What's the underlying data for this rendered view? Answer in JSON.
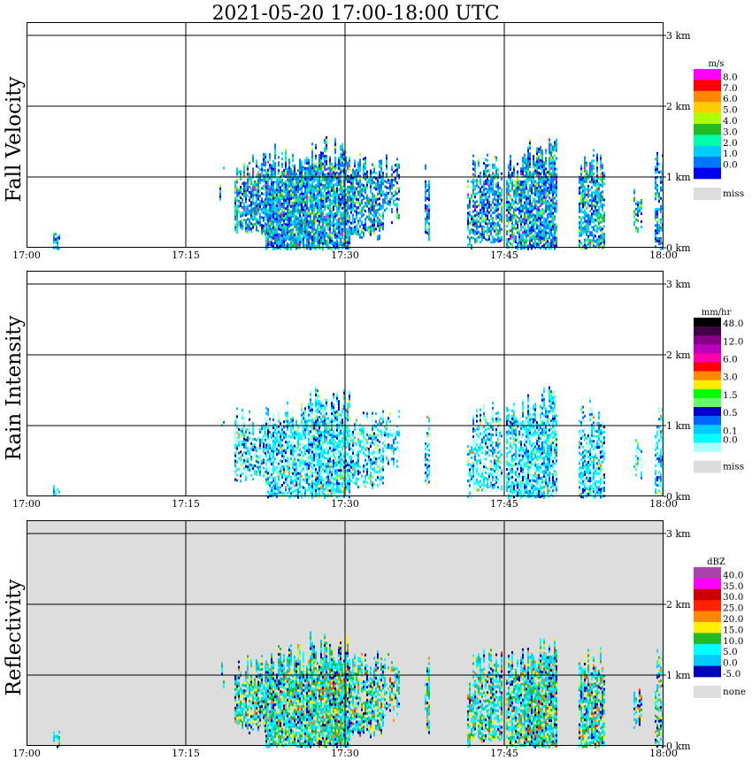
{
  "chart_data": [
    {
      "type": "heatmap",
      "title": "2021-05-20   17:00-18:00 UTC",
      "ylabel": "Fall Velocity",
      "x_ticks": [
        "17:00",
        "17:15",
        "17:30",
        "17:45",
        "18:00"
      ],
      "y_ticks": [
        "0 km",
        "1 km",
        "2 km",
        "3 km"
      ],
      "ylim_km": [
        0,
        3.2
      ],
      "xlim_minutes": [
        0,
        60
      ],
      "background": "#ffffff",
      "colorbar": {
        "unit": "m/s",
        "labels": [
          "8.0",
          "7.0",
          "6.0",
          "5.0",
          "4.0",
          "3.0",
          "2.0",
          "1.0",
          "0.0"
        ],
        "colors": [
          "#ff00ff",
          "#ff0000",
          "#ff8800",
          "#ffcc00",
          "#aaff00",
          "#22bb22",
          "#00ffaa",
          "#00ccff",
          "#0077ff",
          "#0000ee"
        ],
        "miss_label": "miss",
        "miss_color": "#dddddd"
      },
      "cells": [
        {
          "start": 2.5,
          "end": 3.2,
          "top": 0.25,
          "dens": 0.7
        },
        {
          "start": 18.2,
          "end": 18.6,
          "top": 1.18,
          "bot": 1.0,
          "dens": 0.9
        },
        {
          "start": 19.6,
          "end": 22.5,
          "top": 1.25,
          "bot": 0.3,
          "dens": 0.75
        },
        {
          "start": 22.5,
          "end": 26.5,
          "top": 1.4,
          "bot": 0.0,
          "dens": 0.88
        },
        {
          "start": 26.5,
          "end": 30.5,
          "top": 1.5,
          "bot": 0.0,
          "dens": 0.85
        },
        {
          "start": 30.5,
          "end": 33.7,
          "top": 1.25,
          "bot": 0.2,
          "dens": 0.72
        },
        {
          "start": 33.7,
          "end": 35.2,
          "top": 1.25,
          "bot": 0.6,
          "dens": 0.55
        },
        {
          "start": 37.5,
          "end": 37.9,
          "top": 1.18,
          "bot": 0.2,
          "dens": 0.6
        },
        {
          "start": 41.5,
          "end": 42.0,
          "top": 0.95,
          "bot": 0.0,
          "dens": 0.6
        },
        {
          "start": 42.0,
          "end": 44.8,
          "top": 1.3,
          "bot": 0.1,
          "dens": 0.7
        },
        {
          "start": 45.2,
          "end": 46.8,
          "top": 1.3,
          "bot": 0.0,
          "dens": 0.75
        },
        {
          "start": 46.8,
          "end": 50.0,
          "top": 1.45,
          "bot": 0.0,
          "dens": 0.85
        },
        {
          "start": 52.0,
          "end": 54.5,
          "top": 1.3,
          "bot": 0.0,
          "dens": 0.75
        },
        {
          "start": 57.2,
          "end": 58.0,
          "top": 0.9,
          "bot": 0.3,
          "dens": 0.55
        },
        {
          "start": 59.2,
          "end": 60.0,
          "top": 1.35,
          "bot": 0.0,
          "dens": 0.6
        }
      ],
      "colors": [
        "#0000ee",
        "#0077ff",
        "#00ccff",
        "#00ffaa",
        "#22bb22",
        "#aaff00",
        "#ffcc00",
        "#ff00ff"
      ],
      "weights": [
        0.16,
        0.3,
        0.27,
        0.1,
        0.09,
        0.05,
        0.015,
        0.015
      ],
      "core_boost": 0.0
    },
    {
      "type": "heatmap",
      "ylabel": "Rain Intensity",
      "x_ticks": [
        "17:00",
        "17:15",
        "17:30",
        "17:45",
        "18:00"
      ],
      "y_ticks": [
        "0 km",
        "1 km",
        "2 km",
        "3 km"
      ],
      "ylim_km": [
        0,
        3.2
      ],
      "xlim_minutes": [
        0,
        60
      ],
      "background": "#ffffff",
      "colorbar": {
        "unit": "mm/hr",
        "labels": [
          "48.0",
          "12.0",
          "6.0",
          "3.0",
          "1.5",
          "0.5",
          "0.1",
          "0.0"
        ],
        "label_slots": [
          0,
          2,
          4,
          6,
          8,
          10,
          12,
          13
        ],
        "colors": [
          "#000000",
          "#440044",
          "#880088",
          "#bb00bb",
          "#ff00aa",
          "#ff0000",
          "#ff8800",
          "#ffee00",
          "#00ff00",
          "#66ff66",
          "#0000cc",
          "#0066ff",
          "#00ccff",
          "#00ffff",
          "#aaffff"
        ],
        "miss_label": "miss",
        "miss_color": "#dddddd"
      },
      "cells": [
        {
          "start": 2.5,
          "end": 3.2,
          "top": 0.2,
          "dens": 0.5
        },
        {
          "start": 18.2,
          "end": 18.6,
          "top": 1.15,
          "bot": 1.0,
          "dens": 0.9
        },
        {
          "start": 19.6,
          "end": 22.5,
          "top": 1.2,
          "bot": 0.3,
          "dens": 0.6
        },
        {
          "start": 22.5,
          "end": 26.5,
          "top": 1.3,
          "bot": 0.0,
          "dens": 0.75
        },
        {
          "start": 26.5,
          "end": 30.5,
          "top": 1.45,
          "bot": 0.0,
          "dens": 0.9
        },
        {
          "start": 30.5,
          "end": 33.7,
          "top": 1.2,
          "bot": 0.2,
          "dens": 0.6
        },
        {
          "start": 33.7,
          "end": 35.2,
          "top": 1.2,
          "bot": 0.6,
          "dens": 0.5
        },
        {
          "start": 37.5,
          "end": 37.9,
          "top": 1.1,
          "bot": 0.2,
          "dens": 0.6
        },
        {
          "start": 41.5,
          "end": 42.0,
          "top": 0.9,
          "bot": 0.0,
          "dens": 0.5
        },
        {
          "start": 42.0,
          "end": 44.8,
          "top": 1.3,
          "bot": 0.1,
          "dens": 0.65
        },
        {
          "start": 45.2,
          "end": 46.8,
          "top": 1.3,
          "bot": 0.0,
          "dens": 0.75
        },
        {
          "start": 46.8,
          "end": 50.0,
          "top": 1.45,
          "bot": 0.0,
          "dens": 0.85
        },
        {
          "start": 52.0,
          "end": 54.5,
          "top": 1.3,
          "bot": 0.0,
          "dens": 0.7
        },
        {
          "start": 57.2,
          "end": 58.0,
          "top": 0.85,
          "bot": 0.3,
          "dens": 0.5
        },
        {
          "start": 59.2,
          "end": 60.0,
          "top": 1.3,
          "bot": 0.0,
          "dens": 0.6
        }
      ],
      "colors": [
        "#aaffff",
        "#00ffff",
        "#00ccff",
        "#0066ff",
        "#0000cc",
        "#66ff66",
        "#ffee00",
        "#ff8800"
      ],
      "weights": [
        0.34,
        0.28,
        0.14,
        0.1,
        0.08,
        0.03,
        0.02,
        0.01
      ],
      "core_boost": 0.25
    },
    {
      "type": "heatmap",
      "ylabel": "Reflectivity",
      "x_ticks": [
        "17:00",
        "17:15",
        "17:30",
        "17:45",
        "18:00"
      ],
      "y_ticks": [
        "0 km",
        "1 km",
        "2 km",
        "3 km"
      ],
      "ylim_km": [
        0,
        3.2
      ],
      "xlim_minutes": [
        0,
        60
      ],
      "background": "#dddddd",
      "colorbar": {
        "unit": "dBZ",
        "labels": [
          "40.0",
          "35.0",
          "30.0",
          "25.0",
          "20.0",
          "15.0",
          "10.0",
          "5.0",
          "0.0",
          "-5.0"
        ],
        "colors": [
          "#aa44aa",
          "#ff00ff",
          "#cc0000",
          "#ff2200",
          "#ff8800",
          "#ffee00",
          "#22bb22",
          "#00ffff",
          "#00ccff",
          "#0000bb"
        ],
        "miss_label": "none",
        "miss_color": "#dddddd"
      },
      "cells": [
        {
          "start": 2.5,
          "end": 3.2,
          "top": 0.2,
          "dens": 0.7
        },
        {
          "start": 18.2,
          "end": 18.6,
          "top": 1.2,
          "bot": 1.0,
          "dens": 0.9
        },
        {
          "start": 19.6,
          "end": 22.5,
          "top": 1.25,
          "bot": 0.3,
          "dens": 0.75
        },
        {
          "start": 22.5,
          "end": 26.5,
          "top": 1.35,
          "bot": 0.0,
          "dens": 0.88
        },
        {
          "start": 26.5,
          "end": 30.5,
          "top": 1.5,
          "bot": 0.0,
          "dens": 0.92
        },
        {
          "start": 30.5,
          "end": 33.7,
          "top": 1.25,
          "bot": 0.2,
          "dens": 0.72
        },
        {
          "start": 33.7,
          "end": 35.2,
          "top": 1.25,
          "bot": 0.6,
          "dens": 0.55
        },
        {
          "start": 37.5,
          "end": 37.9,
          "top": 1.18,
          "bot": 0.2,
          "dens": 0.6
        },
        {
          "start": 41.5,
          "end": 42.0,
          "top": 0.95,
          "bot": 0.0,
          "dens": 0.6
        },
        {
          "start": 42.0,
          "end": 44.8,
          "top": 1.3,
          "bot": 0.1,
          "dens": 0.7
        },
        {
          "start": 45.2,
          "end": 46.8,
          "top": 1.3,
          "bot": 0.0,
          "dens": 0.78
        },
        {
          "start": 46.8,
          "end": 50.0,
          "top": 1.5,
          "bot": 0.0,
          "dens": 0.9
        },
        {
          "start": 52.0,
          "end": 54.5,
          "top": 1.3,
          "bot": 0.0,
          "dens": 0.78
        },
        {
          "start": 57.2,
          "end": 58.0,
          "top": 0.9,
          "bot": 0.3,
          "dens": 0.55
        },
        {
          "start": 59.2,
          "end": 60.0,
          "top": 1.35,
          "bot": 0.0,
          "dens": 0.6
        }
      ],
      "colors": [
        "#0000bb",
        "#00ccff",
        "#00ffff",
        "#22bb22",
        "#ffee00",
        "#ff8800",
        "#ff2200"
      ],
      "weights": [
        0.14,
        0.27,
        0.27,
        0.16,
        0.1,
        0.04,
        0.02
      ],
      "core_boost": 0.3
    }
  ]
}
